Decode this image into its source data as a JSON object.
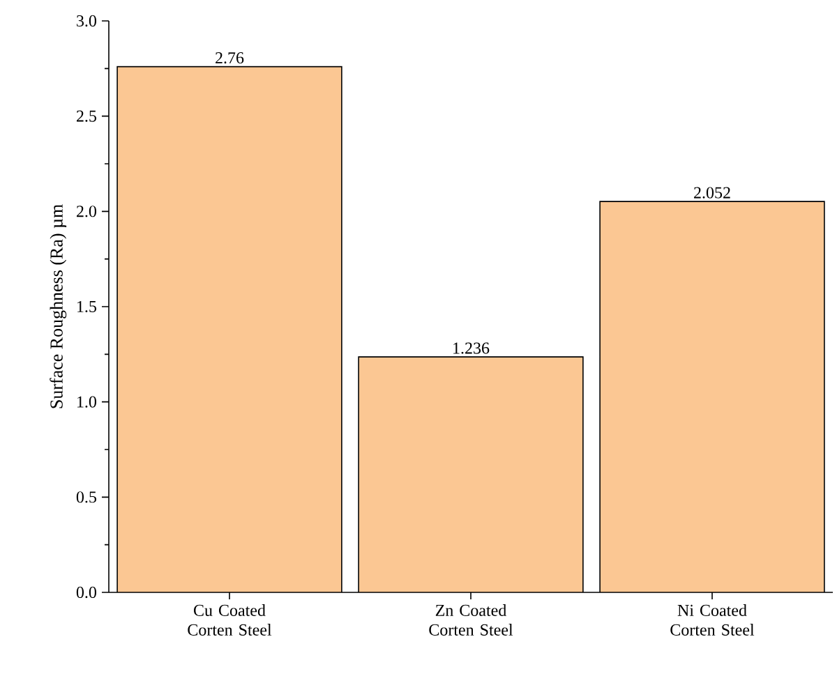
{
  "chart_data": {
    "type": "bar",
    "ylabel": "Surface Roughness (Ra) µm",
    "categories": [
      "Cu Coated Corten Steel",
      "Zn Coated Corten Steel",
      "Ni Coated Corten Steel"
    ],
    "values": [
      2.76,
      1.236,
      2.052
    ],
    "color": "#fbc793",
    "ylim": [
      0,
      3.0
    ],
    "yticks": [
      {
        "value": 0,
        "label": "0.0"
      },
      {
        "value": 0.5,
        "label": "0.5"
      },
      {
        "value": 1.0,
        "label": "1.0"
      },
      {
        "value": 1.5,
        "label": "1.5"
      },
      {
        "value": 2.0,
        "label": "2.0"
      },
      {
        "value": 2.5,
        "label": "2.5"
      },
      {
        "value": 3.0,
        "label": "3.0"
      }
    ],
    "data_labels": true,
    "grid": false
  }
}
